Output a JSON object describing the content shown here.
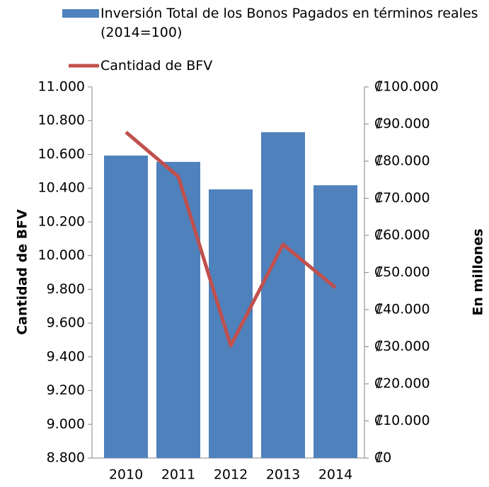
{
  "chart_data": {
    "type": "bar",
    "categories": [
      "2010",
      "2011",
      "2012",
      "2013",
      "2014"
    ],
    "series": [
      {
        "name": "Inversión Total de los Bonos Pagados en términos reales (2014=100)",
        "type": "bar",
        "color": "#4f81bd",
        "axis": "y2",
        "values": [
          81500,
          79800,
          72400,
          87800,
          73500
        ]
      },
      {
        "name": "Cantidad de BFV",
        "type": "line",
        "color": "#c0504d",
        "values": [
          10732,
          10468,
          9466,
          10066,
          9810
        ]
      }
    ],
    "ylabel": "Cantidad de BFV",
    "y2label": "En millones",
    "ylim": [
      8800,
      11000
    ],
    "yticks": [
      {
        "value": 8800,
        "label": "8.800"
      },
      {
        "value": 9000,
        "label": "9.000"
      },
      {
        "value": 9200,
        "label": "9.200"
      },
      {
        "value": 9400,
        "label": "9.400"
      },
      {
        "value": 9600,
        "label": "9.600"
      },
      {
        "value": 9800,
        "label": "9.800"
      },
      {
        "value": 10000,
        "label": "10.000"
      },
      {
        "value": 10200,
        "label": "10.200"
      },
      {
        "value": 10400,
        "label": "10.400"
      },
      {
        "value": 10600,
        "label": "10.600"
      },
      {
        "value": 10800,
        "label": "10.800"
      },
      {
        "value": 11000,
        "label": "11.000"
      }
    ],
    "y2lim": [
      0,
      100000
    ],
    "y2ticks": [
      {
        "value": 0,
        "label": "₡0"
      },
      {
        "value": 10000,
        "label": "₡10.000"
      },
      {
        "value": 20000,
        "label": "₡20.000"
      },
      {
        "value": 30000,
        "label": "₡30.000"
      },
      {
        "value": 40000,
        "label": "₡40.000"
      },
      {
        "value": 50000,
        "label": "₡50.000"
      },
      {
        "value": 60000,
        "label": "₡60.000"
      },
      {
        "value": 70000,
        "label": "₡70.000"
      },
      {
        "value": 80000,
        "label": "₡80.000"
      },
      {
        "value": 90000,
        "label": "₡90.000"
      },
      {
        "value": 100000,
        "label": "₡100.000"
      }
    ],
    "legend": "top-left"
  }
}
